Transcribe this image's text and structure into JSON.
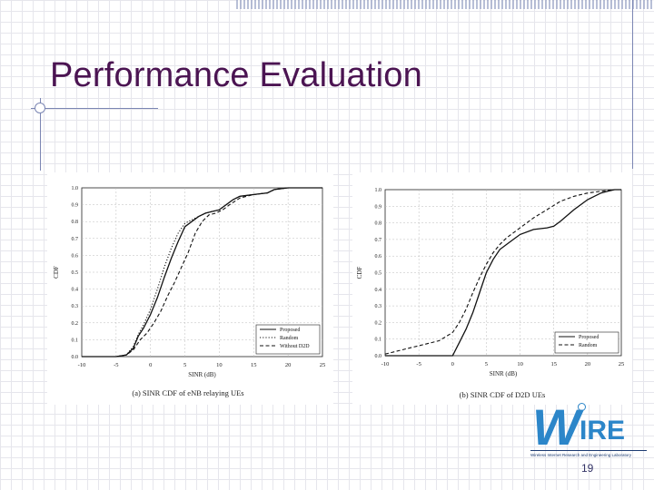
{
  "slide": {
    "title": "Performance Evaluation",
    "page_number": "19"
  },
  "logo": {
    "text": "WIRE",
    "subtitle": "Wireless Internet Research and Engineering Laboratory"
  },
  "chart_data": [
    {
      "type": "line",
      "caption": "(a) SINR CDF of eNB relaying UEs",
      "xlabel": "SINR (dB)",
      "ylabel": "CDF",
      "xlim": [
        -10,
        25
      ],
      "ylim": [
        0,
        1
      ],
      "xticks": [
        -10,
        -5,
        0,
        5,
        10,
        15,
        20,
        25
      ],
      "yticks": [
        0,
        0.1,
        0.2,
        0.3,
        0.4,
        0.5,
        0.6,
        0.7,
        0.8,
        0.9,
        1.0
      ],
      "grid": true,
      "legend": "bottom-right",
      "series": [
        {
          "name": "Proposed",
          "style": "solid",
          "x": [
            -10,
            -5,
            -3.5,
            -2.5,
            -1.8,
            -1,
            0,
            1,
            2,
            3,
            4,
            5,
            6,
            7,
            8,
            9,
            10,
            11,
            12,
            13,
            15,
            17,
            18,
            20,
            25
          ],
          "y": [
            0,
            0,
            0.01,
            0.05,
            0.12,
            0.17,
            0.25,
            0.35,
            0.47,
            0.58,
            0.68,
            0.77,
            0.8,
            0.83,
            0.85,
            0.86,
            0.87,
            0.9,
            0.93,
            0.95,
            0.96,
            0.97,
            0.99,
            1.0,
            1.0
          ]
        },
        {
          "name": "Random",
          "style": "dotted",
          "x": [
            -10,
            -5,
            -3.5,
            -2.5,
            -1.8,
            -1,
            0,
            1,
            2,
            3,
            4,
            5,
            6,
            7,
            8,
            9,
            10,
            11,
            12,
            13,
            15,
            17,
            18,
            20,
            25
          ],
          "y": [
            0,
            0,
            0.01,
            0.06,
            0.13,
            0.19,
            0.28,
            0.4,
            0.53,
            0.64,
            0.73,
            0.79,
            0.81,
            0.83,
            0.85,
            0.86,
            0.87,
            0.9,
            0.93,
            0.95,
            0.96,
            0.97,
            0.99,
            1.0,
            1.0
          ]
        },
        {
          "name": "Without D2D",
          "style": "dashed",
          "x": [
            -10,
            -5,
            -3.5,
            -2.5,
            -1.5,
            -0.5,
            0.5,
            1.5,
            2.5,
            3.5,
            4.5,
            5.5,
            6.5,
            7.5,
            8.5,
            9.5,
            10.5,
            11.5,
            13,
            15,
            17,
            18,
            20,
            25
          ],
          "y": [
            0,
            0,
            0.01,
            0.04,
            0.1,
            0.14,
            0.2,
            0.27,
            0.36,
            0.44,
            0.53,
            0.62,
            0.73,
            0.8,
            0.84,
            0.85,
            0.87,
            0.9,
            0.94,
            0.96,
            0.97,
            0.99,
            1.0,
            1.0
          ]
        }
      ]
    },
    {
      "type": "line",
      "caption": "(b) SINR CDF of D2D UEs",
      "xlabel": "SINR (dB)",
      "ylabel": "CDF",
      "xlim": [
        -10,
        25
      ],
      "ylim": [
        0,
        1
      ],
      "xticks": [
        -10,
        -5,
        0,
        5,
        10,
        15,
        20,
        25
      ],
      "yticks": [
        0,
        0.1,
        0.2,
        0.3,
        0.4,
        0.5,
        0.6,
        0.7,
        0.8,
        0.9,
        1.0
      ],
      "grid": true,
      "legend": "bottom-right",
      "series": [
        {
          "name": "Proposed",
          "style": "solid",
          "x": [
            -10,
            0,
            1,
            2,
            3,
            4,
            5,
            6,
            7,
            8,
            9,
            10,
            12,
            14,
            15,
            16,
            18,
            20,
            22,
            23,
            24,
            25
          ],
          "y": [
            0,
            0,
            0.08,
            0.16,
            0.26,
            0.38,
            0.5,
            0.58,
            0.64,
            0.67,
            0.7,
            0.73,
            0.76,
            0.77,
            0.78,
            0.81,
            0.88,
            0.94,
            0.98,
            0.99,
            1.0,
            1.0
          ]
        },
        {
          "name": "Random",
          "style": "dashed",
          "x": [
            -10,
            -8,
            -6,
            -4,
            -2,
            0,
            1,
            2,
            3,
            4,
            5,
            6,
            7,
            8,
            10,
            12,
            14,
            16,
            18,
            20,
            22,
            24,
            25
          ],
          "y": [
            0.01,
            0.03,
            0.05,
            0.07,
            0.09,
            0.14,
            0.2,
            0.28,
            0.38,
            0.47,
            0.55,
            0.62,
            0.67,
            0.71,
            0.77,
            0.83,
            0.88,
            0.93,
            0.96,
            0.98,
            0.99,
            1.0,
            1.0
          ]
        }
      ]
    }
  ]
}
